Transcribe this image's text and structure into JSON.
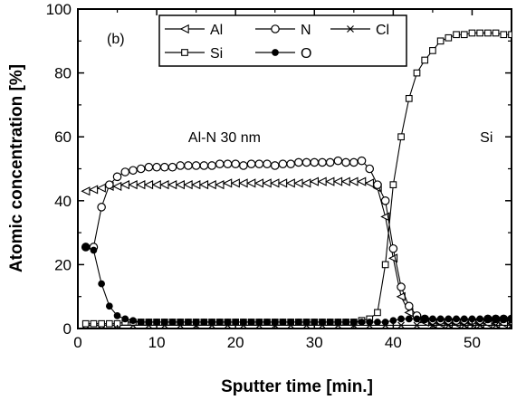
{
  "chart_data": {
    "type": "line",
    "panel_label": "(b)",
    "xlabel": "Sputter time [min.]",
    "ylabel": "Atomic concentration [%]",
    "xlim": [
      0,
      55
    ],
    "ylim": [
      0,
      100
    ],
    "xticks": [
      0,
      10,
      20,
      30,
      40,
      50
    ],
    "yticks": [
      0,
      20,
      40,
      60,
      80,
      100
    ],
    "annotations": [
      {
        "text": "Al-N 30 nm",
        "x": 14,
        "y": 60
      },
      {
        "text": "Si",
        "x": 51,
        "y": 60
      }
    ],
    "legend_position": "top-left",
    "series": [
      {
        "name": "Al",
        "marker": "triangle-left",
        "x": [
          1,
          2,
          3,
          4,
          5,
          6,
          7,
          8,
          9,
          10,
          11,
          12,
          13,
          14,
          15,
          16,
          17,
          18,
          19,
          20,
          21,
          22,
          23,
          24,
          25,
          26,
          27,
          28,
          29,
          30,
          31,
          32,
          33,
          34,
          35,
          36,
          37,
          38,
          39,
          40,
          41,
          42,
          43,
          44,
          45,
          46,
          47,
          48,
          49,
          50,
          51,
          52,
          53,
          54,
          55
        ],
        "values": [
          43,
          43.5,
          44,
          44.5,
          44.5,
          45,
          45,
          45,
          45,
          45,
          45,
          45,
          45,
          45,
          45,
          45,
          45,
          45,
          45.5,
          45.5,
          45.5,
          45.5,
          45.5,
          45.5,
          45.5,
          45.5,
          45.5,
          45.5,
          45.5,
          46,
          46,
          46,
          46,
          46,
          46,
          46,
          45.5,
          44,
          35,
          22,
          10,
          5,
          3,
          2,
          1.5,
          1.5,
          1.5,
          1.5,
          1.5,
          1.5,
          1.5,
          1.5,
          1.5,
          1.5,
          1.5
        ]
      },
      {
        "name": "N",
        "marker": "circle-open",
        "x": [
          1,
          2,
          3,
          4,
          5,
          6,
          7,
          8,
          9,
          10,
          11,
          12,
          13,
          14,
          15,
          16,
          17,
          18,
          19,
          20,
          21,
          22,
          23,
          24,
          25,
          26,
          27,
          28,
          29,
          30,
          31,
          32,
          33,
          34,
          35,
          36,
          37,
          38,
          39,
          40,
          41,
          42,
          43,
          44,
          45,
          46,
          47,
          48,
          49,
          50,
          51,
          52,
          53,
          54,
          55
        ],
        "values": [
          25.5,
          25.5,
          38,
          45,
          47.5,
          49,
          49.5,
          50,
          50.5,
          50.5,
          50.5,
          50.5,
          51,
          51,
          51,
          51,
          51,
          51.5,
          51.5,
          51.5,
          51,
          51.5,
          51.5,
          51.5,
          51,
          51.5,
          51.5,
          52,
          52,
          52,
          52,
          52,
          52.5,
          52,
          52,
          52.5,
          50,
          45,
          40,
          25,
          13,
          7,
          4,
          3,
          2.5,
          2.5,
          2.5,
          2.5,
          2.5,
          2.5,
          2.5,
          3,
          3,
          3,
          3
        ]
      },
      {
        "name": "Cl",
        "marker": "x",
        "x": [
          1,
          3,
          5,
          7,
          9,
          11,
          13,
          15,
          17,
          19,
          21,
          23,
          25,
          27,
          29,
          31,
          33,
          35,
          37,
          39,
          41,
          43,
          45,
          47,
          49,
          51,
          53,
          55
        ],
        "values": [
          1,
          1,
          1,
          1,
          1,
          1,
          1,
          1,
          1,
          1,
          1,
          1,
          1,
          1,
          1,
          1,
          1,
          1,
          1,
          1,
          1,
          1,
          1,
          1,
          1,
          1,
          1,
          1
        ]
      },
      {
        "name": "Si",
        "marker": "square-open",
        "x": [
          1,
          2,
          3,
          4,
          5,
          6,
          7,
          8,
          9,
          10,
          11,
          12,
          13,
          14,
          15,
          16,
          17,
          18,
          19,
          20,
          21,
          22,
          23,
          24,
          25,
          26,
          27,
          28,
          29,
          30,
          31,
          32,
          33,
          34,
          35,
          36,
          37,
          38,
          39,
          40,
          41,
          42,
          43,
          44,
          45,
          46,
          47,
          48,
          49,
          50,
          51,
          52,
          53,
          54,
          55
        ],
        "values": [
          1.5,
          1.5,
          1.5,
          1.5,
          1.5,
          2,
          2,
          2,
          2,
          2,
          2,
          2,
          2,
          2,
          2,
          2,
          2,
          2,
          2,
          2,
          2,
          2,
          2,
          2,
          2,
          2,
          2,
          2,
          2,
          2,
          2,
          2,
          2,
          2,
          2,
          2.5,
          3,
          5,
          20,
          45,
          60,
          72,
          80,
          84,
          87,
          90,
          91,
          92,
          92,
          92.5,
          92.5,
          92.5,
          92.5,
          92,
          92
        ]
      },
      {
        "name": "O",
        "marker": "circle-filled",
        "x": [
          1,
          2,
          3,
          4,
          5,
          6,
          7,
          8,
          9,
          10,
          11,
          12,
          13,
          14,
          15,
          16,
          17,
          18,
          19,
          20,
          21,
          22,
          23,
          24,
          25,
          26,
          27,
          28,
          29,
          30,
          31,
          32,
          33,
          34,
          35,
          36,
          37,
          38,
          39,
          40,
          41,
          42,
          43,
          44,
          45,
          46,
          47,
          48,
          49,
          50,
          51,
          52,
          53,
          54,
          55
        ],
        "values": [
          25.5,
          24.5,
          14,
          7,
          4,
          3,
          2.5,
          2,
          2,
          2,
          2,
          2,
          2,
          2,
          2,
          2,
          2,
          2,
          2,
          2,
          2,
          2,
          2,
          2,
          2,
          2,
          2,
          2,
          2,
          2,
          2,
          2,
          2,
          2,
          2,
          2,
          2,
          2,
          2,
          2.5,
          3,
          3,
          3,
          3,
          3,
          3,
          3,
          3,
          3,
          3,
          3,
          3,
          3,
          3,
          3
        ]
      }
    ]
  }
}
